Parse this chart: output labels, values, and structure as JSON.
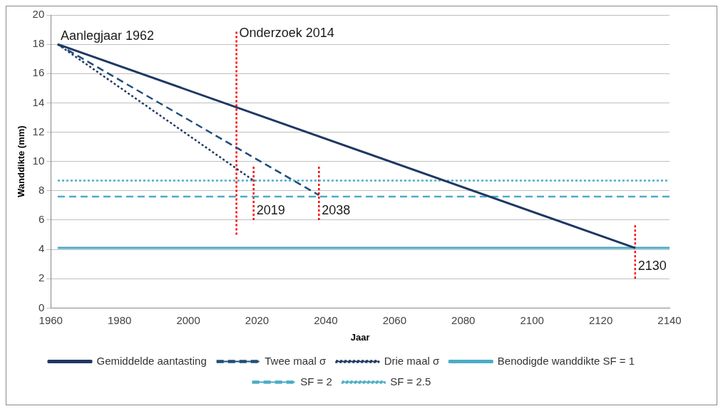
{
  "chart_data": {
    "type": "line",
    "xlabel": "Jaar",
    "ylabel": "Wanddikte (mm)",
    "xlim": [
      1960,
      2140
    ],
    "xticks": [
      1960,
      1980,
      2000,
      2020,
      2040,
      2060,
      2080,
      2100,
      2120,
      2140
    ],
    "ylim": [
      0,
      20
    ],
    "yticks": [
      0,
      2,
      4,
      6,
      8,
      10,
      12,
      14,
      16,
      18,
      20
    ],
    "grid": "y",
    "legend": "bottom",
    "marker": "none",
    "series": [
      {
        "name": "Gemiddelde aantasting",
        "color": "#1f3864",
        "line_style": "solid",
        "x": [
          1962,
          2130
        ],
        "values": [
          18,
          4.1
        ]
      },
      {
        "name": "Twee maal σ",
        "color": "#1f4e79",
        "line_style": "dashed",
        "x": [
          1962,
          2038
        ],
        "values": [
          18,
          7.7
        ]
      },
      {
        "name": "Drie maal σ",
        "color": "#1f3864",
        "line_style": "dotted",
        "x": [
          1962,
          2019
        ],
        "values": [
          18,
          8.7
        ]
      },
      {
        "name": "Benodigde wanddikte SF = 1",
        "color": "#4bacc6",
        "line_style": "solid",
        "x": [
          1962,
          2140
        ],
        "values": [
          4.1,
          4.1
        ]
      },
      {
        "name": "SF = 2",
        "color": "#4bacc6",
        "line_style": "dashed",
        "x": [
          1962,
          2140
        ],
        "values": [
          7.6,
          7.6
        ]
      },
      {
        "name": "SF = 2.5",
        "color": "#4bacc6",
        "line_style": "dotted",
        "x": [
          1962,
          2140
        ],
        "values": [
          8.7,
          8.7
        ]
      },
      {
        "color": "#ff0000",
        "line_style": "dotted",
        "x": [
          2014,
          2014
        ],
        "values": [
          5,
          19
        ]
      },
      {
        "color": "#ff0000",
        "line_style": "dotted",
        "x": [
          2019,
          2019
        ],
        "values": [
          6,
          9.7
        ]
      },
      {
        "color": "#ff0000",
        "line_style": "dotted",
        "x": [
          2038,
          2038
        ],
        "values": [
          6,
          9.7
        ]
      },
      {
        "color": "#ff0000",
        "line_style": "dotted",
        "x": [
          2130,
          2130
        ],
        "values": [
          2,
          5.7
        ]
      }
    ],
    "annotations": [
      {
        "text": "Aanlegjaar 1962",
        "x": 1962,
        "y": 18
      },
      {
        "text": "Onderzoek 2014",
        "x": 2014,
        "y": 18.2
      },
      {
        "text": "2019",
        "x": 2019,
        "y": 6.1
      },
      {
        "text": "2038",
        "x": 2038,
        "y": 6.1
      },
      {
        "text": "2130",
        "x": 2130,
        "y": 2.3
      }
    ]
  }
}
